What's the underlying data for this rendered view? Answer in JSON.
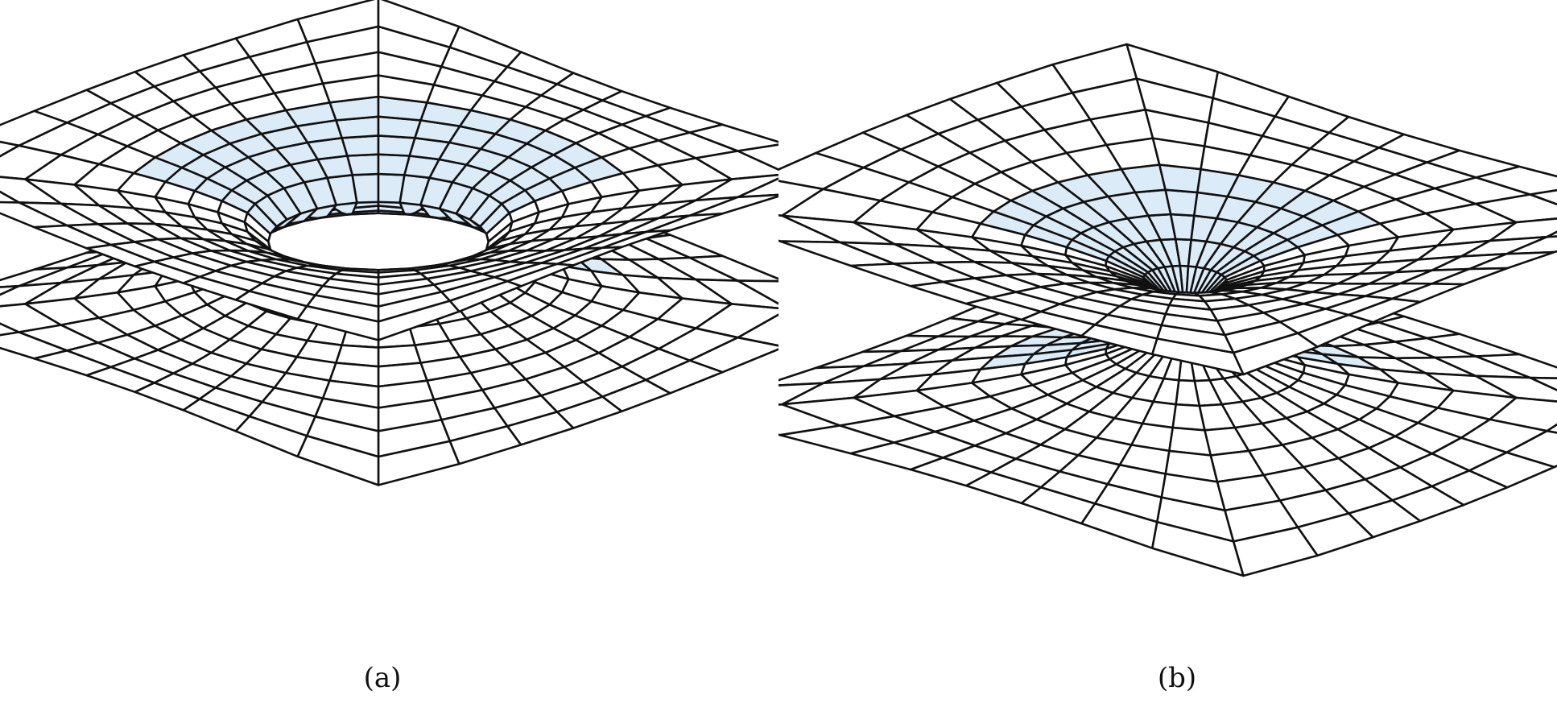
{
  "figure": {
    "panels": [
      {
        "id": "a",
        "caption": "(a)",
        "throat": "open"
      },
      {
        "id": "b",
        "caption": "(b)",
        "throat": "pinched"
      }
    ],
    "colors": {
      "line": "#111111",
      "face": "#ffffff",
      "shade": "#dcebf8"
    }
  }
}
